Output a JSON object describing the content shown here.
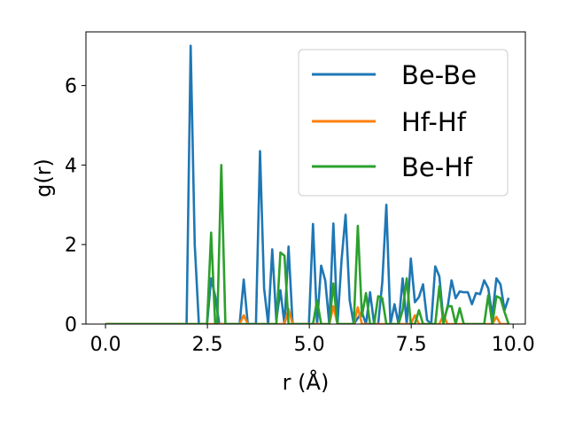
{
  "chart_data": {
    "type": "line",
    "xlabel": "r (Å)",
    "ylabel": "g(r)",
    "xlim": [
      -0.48,
      10.3
    ],
    "ylim": [
      0,
      7.35
    ],
    "xticks": [
      0.0,
      2.5,
      5.0,
      7.5,
      10.0
    ],
    "xtick_labels": [
      "0.0",
      "2.5",
      "5.0",
      "7.5",
      "10.0"
    ],
    "yticks": [
      0,
      2,
      4,
      6
    ],
    "ytick_labels": [
      "0",
      "2",
      "4",
      "6"
    ],
    "grid": false,
    "legend_position": "top-right",
    "series": [
      {
        "name": "Be-Be",
        "color": "#1f77b4",
        "points": [
          [
            0.0,
            0
          ],
          [
            1.99,
            0
          ],
          [
            2.09,
            7.0
          ],
          [
            2.19,
            2.0
          ],
          [
            2.29,
            0
          ],
          [
            2.49,
            0
          ],
          [
            2.59,
            1.15
          ],
          [
            2.69,
            0.7
          ],
          [
            2.79,
            0
          ],
          [
            3.29,
            0
          ],
          [
            3.39,
            1.12
          ],
          [
            3.49,
            0
          ],
          [
            3.69,
            0
          ],
          [
            3.79,
            4.35
          ],
          [
            3.89,
            0.9
          ],
          [
            3.99,
            0
          ],
          [
            4.09,
            1.88
          ],
          [
            4.19,
            0.1
          ],
          [
            4.29,
            0.85
          ],
          [
            4.39,
            0
          ],
          [
            4.49,
            1.95
          ],
          [
            4.59,
            0
          ],
          [
            4.99,
            0
          ],
          [
            5.09,
            2.52
          ],
          [
            5.19,
            0
          ],
          [
            5.29,
            1.47
          ],
          [
            5.39,
            1.1
          ],
          [
            5.49,
            0
          ],
          [
            5.59,
            2.53
          ],
          [
            5.69,
            0
          ],
          [
            5.79,
            1.6
          ],
          [
            5.89,
            2.75
          ],
          [
            5.99,
            0.6
          ],
          [
            6.09,
            0
          ],
          [
            6.29,
            0.3
          ],
          [
            6.39,
            0
          ],
          [
            6.49,
            0.8
          ],
          [
            6.59,
            0
          ],
          [
            6.69,
            0
          ],
          [
            6.79,
            1.05
          ],
          [
            6.89,
            3.0
          ],
          [
            6.99,
            0
          ],
          [
            7.09,
            0.5
          ],
          [
            7.19,
            0
          ],
          [
            7.29,
            1.15
          ],
          [
            7.39,
            0
          ],
          [
            7.49,
            1.65
          ],
          [
            7.59,
            0.55
          ],
          [
            7.69,
            0.68
          ],
          [
            7.79,
            1.0
          ],
          [
            7.89,
            0.1
          ],
          [
            7.99,
            0
          ],
          [
            8.09,
            1.45
          ],
          [
            8.19,
            1.2
          ],
          [
            8.29,
            0.1
          ],
          [
            8.39,
            0.4
          ],
          [
            8.49,
            1.1
          ],
          [
            8.59,
            0.65
          ],
          [
            8.69,
            0.82
          ],
          [
            8.79,
            0.8
          ],
          [
            8.89,
            0.8
          ],
          [
            8.99,
            0.5
          ],
          [
            9.09,
            0.78
          ],
          [
            9.19,
            0.75
          ],
          [
            9.29,
            1.1
          ],
          [
            9.39,
            0.9
          ],
          [
            9.49,
            0.2
          ],
          [
            9.59,
            1.15
          ],
          [
            9.69,
            1.0
          ],
          [
            9.79,
            0.35
          ],
          [
            9.89,
            0.66
          ]
        ]
      },
      {
        "name": "Hf-Hf",
        "color": "#ff7f0e",
        "points": [
          [
            0.0,
            0
          ],
          [
            3.29,
            0
          ],
          [
            3.39,
            0.22
          ],
          [
            3.49,
            0
          ],
          [
            4.39,
            0
          ],
          [
            4.49,
            0.38
          ],
          [
            4.59,
            0
          ],
          [
            5.49,
            0
          ],
          [
            5.59,
            0.45
          ],
          [
            5.69,
            0
          ],
          [
            6.09,
            0
          ],
          [
            6.19,
            0.42
          ],
          [
            6.29,
            0
          ],
          [
            7.49,
            0
          ],
          [
            7.59,
            0.22
          ],
          [
            7.69,
            0
          ],
          [
            8.19,
            0
          ],
          [
            8.29,
            0.22
          ],
          [
            8.39,
            0
          ],
          [
            9.49,
            0
          ],
          [
            9.59,
            0.18
          ],
          [
            9.69,
            0
          ],
          [
            9.89,
            0
          ]
        ]
      },
      {
        "name": "Be-Hf",
        "color": "#2ca02c",
        "points": [
          [
            0.0,
            0
          ],
          [
            2.49,
            0
          ],
          [
            2.59,
            2.3
          ],
          [
            2.69,
            0
          ],
          [
            2.74,
            0
          ],
          [
            2.84,
            4.0
          ],
          [
            2.94,
            0
          ],
          [
            4.19,
            0
          ],
          [
            4.29,
            1.8
          ],
          [
            4.39,
            1.72
          ],
          [
            4.49,
            0
          ],
          [
            5.09,
            0
          ],
          [
            5.19,
            0.6
          ],
          [
            5.29,
            0
          ],
          [
            5.49,
            0
          ],
          [
            5.59,
            1.02
          ],
          [
            5.69,
            0
          ],
          [
            6.09,
            0
          ],
          [
            6.19,
            2.47
          ],
          [
            6.29,
            0.2
          ],
          [
            6.39,
            0.78
          ],
          [
            6.49,
            0
          ],
          [
            6.59,
            0
          ],
          [
            6.69,
            0.7
          ],
          [
            6.79,
            0.65
          ],
          [
            6.89,
            0
          ],
          [
            7.19,
            0
          ],
          [
            7.29,
            0.35
          ],
          [
            7.39,
            1.15
          ],
          [
            7.49,
            0
          ],
          [
            7.59,
            0
          ],
          [
            7.69,
            0.35
          ],
          [
            7.79,
            0
          ],
          [
            8.09,
            0
          ],
          [
            8.19,
            0.95
          ],
          [
            8.29,
            0
          ],
          [
            8.39,
            0.45
          ],
          [
            8.49,
            0.45
          ],
          [
            8.59,
            0
          ],
          [
            8.69,
            0.4
          ],
          [
            8.79,
            0
          ],
          [
            9.29,
            0
          ],
          [
            9.39,
            0.72
          ],
          [
            9.49,
            0
          ],
          [
            9.59,
            0.7
          ],
          [
            9.69,
            0.65
          ],
          [
            9.79,
            0.3
          ],
          [
            9.89,
            0
          ]
        ]
      }
    ]
  }
}
